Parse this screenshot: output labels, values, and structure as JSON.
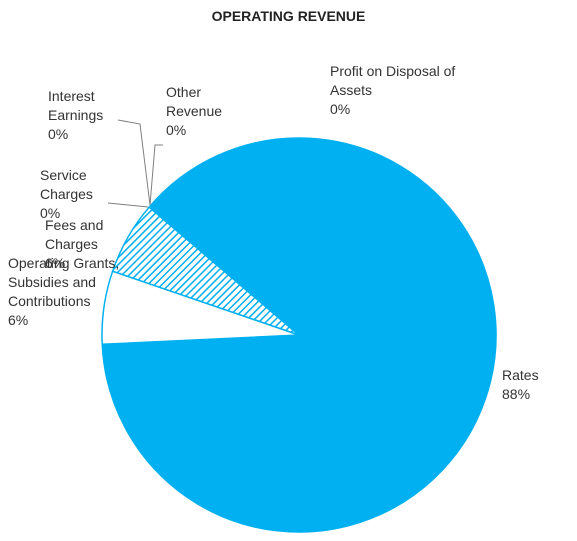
{
  "chart_data": {
    "type": "pie",
    "title": "OPERATING REVENUE",
    "categories": [
      "Rates",
      "Operating Grants, Subsidies and Contributions",
      "Fees and Charges",
      "Service Charges",
      "Interest Earnings",
      "Other Revenue",
      "Profit on Disposal of Assets"
    ],
    "values": [
      88,
      6,
      6,
      0,
      0,
      0,
      0
    ],
    "value_labels": [
      "88%",
      "6%",
      "6%",
      "0%",
      "0%",
      "0%",
      "0%"
    ],
    "colors": [
      "#00b0f0",
      "#ffffff",
      "hatch",
      "#00b0f0",
      "#00b0f0",
      "#00b0f0",
      "#00b0f0"
    ]
  }
}
